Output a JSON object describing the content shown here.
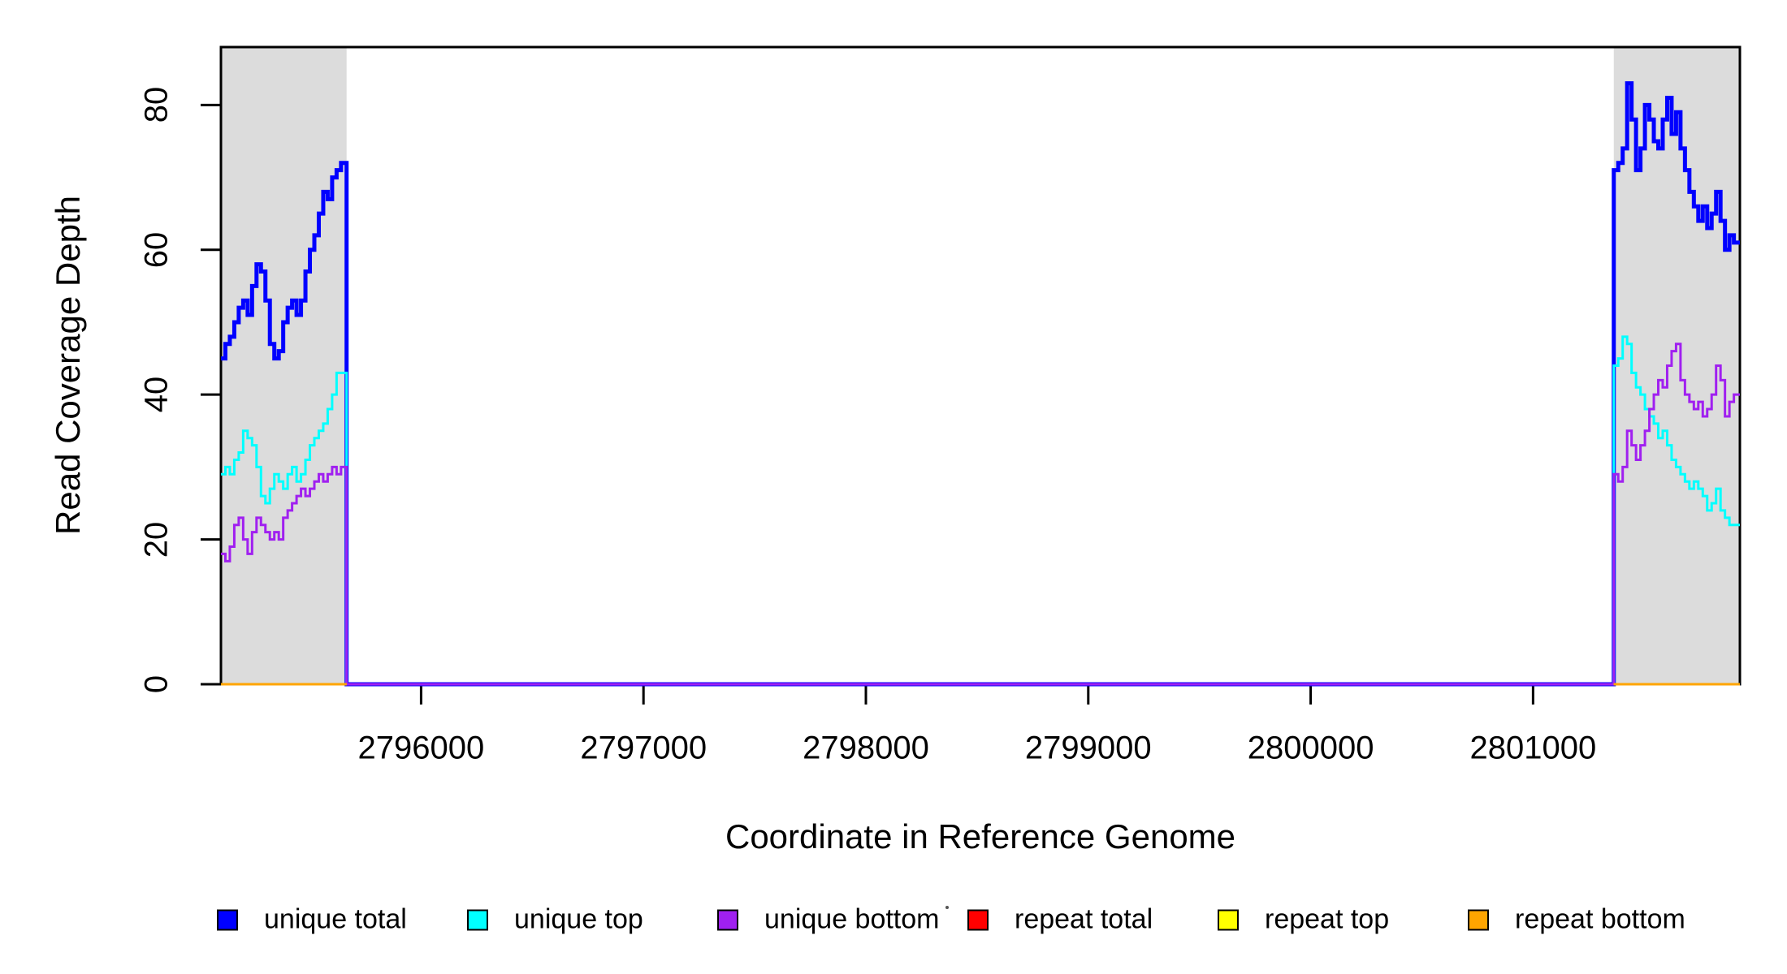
{
  "figure": {
    "background": "#ffffff",
    "axis_color": "#000000"
  },
  "chart_data": {
    "type": "line",
    "style": "step",
    "title": "",
    "xlabel": "Coordinate in Reference Genome",
    "ylabel": "Read Coverage Depth",
    "xlim": [
      2795100,
      2801930
    ],
    "ylim": [
      0,
      88
    ],
    "x_ticks": [
      2796000,
      2797000,
      2798000,
      2799000,
      2800000,
      2801000
    ],
    "y_ticks": [
      0,
      20,
      40,
      60,
      80
    ],
    "grid": false,
    "legend_position": "bottom",
    "shaded_regions": [
      {
        "name": "repeat-region-left",
        "x0": 2795100,
        "x1": 2795665,
        "color": "#DCDCDC"
      },
      {
        "name": "repeat-region-right",
        "x0": 2801363,
        "x1": 2801930,
        "color": "#DCDCDC"
      }
    ],
    "series": [
      {
        "name": "unique total",
        "color": "#0000FF",
        "line_width": 5,
        "span_full_domain": true,
        "segments": [
          {
            "x0": 2795100,
            "dx": 20,
            "x1": 2795665,
            "values": [
              45,
              47,
              48,
              50,
              52,
              53,
              51,
              55,
              58,
              57,
              53,
              47,
              45,
              46,
              50,
              52,
              53,
              51,
              53,
              57,
              60,
              62,
              65,
              68,
              67,
              70,
              71,
              72
            ]
          },
          {
            "x0": 2801363,
            "dx": 20,
            "x1": 2801930,
            "values": [
              71,
              72,
              74,
              83,
              78,
              71,
              74,
              80,
              78,
              75,
              74,
              78,
              81,
              76,
              79,
              74,
              71,
              68,
              66,
              64,
              66,
              63,
              65,
              68,
              64,
              60,
              62,
              61
            ]
          }
        ]
      },
      {
        "name": "unique top",
        "color": "#00FFFF",
        "line_width": 3,
        "span_full_domain": true,
        "segments": [
          {
            "x0": 2795100,
            "dx": 20,
            "x1": 2795665,
            "values": [
              29,
              30,
              29,
              31,
              32,
              35,
              34,
              33,
              30,
              26,
              25,
              27,
              29,
              28,
              27,
              29,
              30,
              28,
              29,
              31,
              33,
              34,
              35,
              36,
              38,
              40,
              43,
              43
            ]
          },
          {
            "x0": 2801363,
            "dx": 20,
            "x1": 2801930,
            "values": [
              44,
              45,
              48,
              47,
              43,
              41,
              40,
              38,
              37,
              36,
              34,
              35,
              33,
              31,
              30,
              29,
              28,
              27,
              28,
              27,
              26,
              24,
              25,
              27,
              24,
              23,
              22,
              22
            ]
          }
        ]
      },
      {
        "name": "unique bottom",
        "color": "#A020F0",
        "line_width": 3,
        "span_full_domain": true,
        "segments": [
          {
            "x0": 2795100,
            "dx": 20,
            "x1": 2795665,
            "values": [
              18,
              17,
              19,
              22,
              23,
              20,
              18,
              21,
              23,
              22,
              21,
              20,
              21,
              20,
              23,
              24,
              25,
              26,
              27,
              26,
              27,
              28,
              29,
              28,
              29,
              30,
              29,
              30
            ]
          },
          {
            "x0": 2801363,
            "dx": 20,
            "x1": 2801930,
            "values": [
              29,
              28,
              30,
              35,
              33,
              31,
              33,
              35,
              38,
              40,
              42,
              41,
              44,
              46,
              47,
              42,
              40,
              39,
              38,
              39,
              37,
              38,
              40,
              44,
              42,
              37,
              39,
              40
            ]
          }
        ]
      },
      {
        "name": "repeat total",
        "color": "#FF0000",
        "line_width": 3,
        "span_full_domain": false,
        "segments": [
          {
            "x0": 2795100,
            "dx": 565,
            "x1": 2795665,
            "values": [
              0
            ]
          },
          {
            "x0": 2801363,
            "dx": 567,
            "x1": 2801930,
            "values": [
              0
            ]
          }
        ]
      },
      {
        "name": "repeat top",
        "color": "#FFFF00",
        "line_width": 3,
        "span_full_domain": false,
        "segments": [
          {
            "x0": 2795100,
            "dx": 565,
            "x1": 2795665,
            "values": [
              0
            ]
          },
          {
            "x0": 2801363,
            "dx": 567,
            "x1": 2801930,
            "values": [
              0
            ]
          }
        ]
      },
      {
        "name": "repeat bottom",
        "color": "#FFA500",
        "line_width": 3,
        "span_full_domain": false,
        "segments": [
          {
            "x0": 2795100,
            "dx": 565,
            "x1": 2795665,
            "values": [
              0
            ]
          },
          {
            "x0": 2801363,
            "dx": 567,
            "x1": 2801930,
            "values": [
              0
            ]
          }
        ]
      }
    ]
  }
}
